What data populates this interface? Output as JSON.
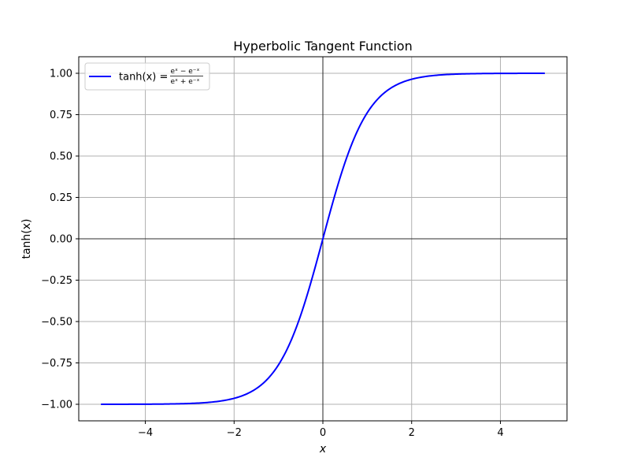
{
  "chart_data": {
    "type": "line",
    "title": "Hyperbolic Tangent Function",
    "xlabel": "x",
    "ylabel": "tanh(x)",
    "xlim": [
      -5.5,
      5.5
    ],
    "ylim": [
      -1.1,
      1.1
    ],
    "x_ticks": [
      -4,
      -2,
      0,
      2,
      4
    ],
    "x_tick_labels": [
      "−4",
      "−2",
      "0",
      "2",
      "4"
    ],
    "y_ticks": [
      1.0,
      0.75,
      0.5,
      0.25,
      0.0,
      -0.25,
      -0.5,
      -0.75,
      -1.0
    ],
    "y_tick_labels": [
      "1.00",
      "0.75",
      "0.50",
      "0.25",
      "0.00",
      "−0.25",
      "−0.50",
      "−0.75",
      "−1.00"
    ],
    "grid": true,
    "reference_lines": {
      "x": 0,
      "y": 0
    },
    "legend_position": "upper-left",
    "legend": {
      "prefix": "tanh(x) =",
      "numerator": "eˣ − e⁻ˣ",
      "denominator": "eˣ + e⁻ˣ"
    },
    "series": [
      {
        "color": "#0000ff",
        "function": "tanh",
        "x": [
          -5.0,
          -4.5,
          -4.0,
          -3.5,
          -3.0,
          -2.5,
          -2.0,
          -1.75,
          -1.5,
          -1.25,
          -1.0,
          -0.75,
          -0.5,
          -0.25,
          0.0,
          0.25,
          0.5,
          0.75,
          1.0,
          1.25,
          1.5,
          1.75,
          2.0,
          2.5,
          3.0,
          3.5,
          4.0,
          4.5,
          5.0
        ],
        "values": [
          -0.9999,
          -0.9998,
          -0.9993,
          -0.9982,
          -0.9951,
          -0.9866,
          -0.964,
          -0.9413,
          -0.9051,
          -0.8483,
          -0.7616,
          -0.6351,
          -0.4621,
          -0.2449,
          0.0,
          0.2449,
          0.4621,
          0.6351,
          0.7616,
          0.8483,
          0.9051,
          0.9413,
          0.964,
          0.9866,
          0.9951,
          0.9982,
          0.9993,
          0.9998,
          0.9999
        ]
      }
    ]
  }
}
